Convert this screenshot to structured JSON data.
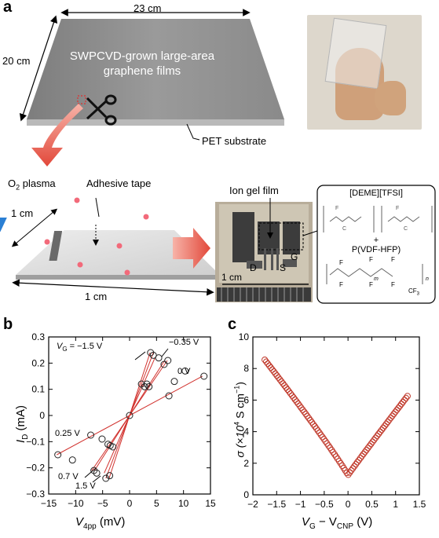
{
  "panel_a": {
    "label": "a",
    "film": {
      "width_label": "23 cm",
      "height_label": "20 cm",
      "title_line1": "SWPCVD-grown large-area",
      "title_line2": "graphene films",
      "substrate_label": "PET substrate"
    },
    "device": {
      "plasma_label": "O",
      "plasma_sub": "2",
      "plasma_suffix": " plasma",
      "tape_label": "Adhesive tape",
      "side1_label": "1 cm",
      "side2_label": "1 cm"
    },
    "photo": {
      "gel_label": "Ion gel film",
      "scale_label": "1 cm",
      "d_label": "D",
      "s_label": "S",
      "g_label": "G"
    },
    "chem": {
      "title": "[DEME][TFSI]",
      "plus": "+",
      "polymer": "P(VDF-HFP)",
      "f": "F",
      "cf3": "CF",
      "cf3_sub": "3",
      "m": "m",
      "n": "n",
      "ion_left1": "F",
      "ion_left2": "C",
      "ion_right1": "F",
      "ion_right2": "C"
    },
    "colors": {
      "film": "#8c8c8c",
      "arrow": "#e8584a",
      "tape": "#2a7fd4",
      "dot": "#f26a7a"
    }
  },
  "panel_b": {
    "label": "b",
    "chart_data": {
      "type": "scatter",
      "xlabel_main": "V",
      "xlabel_sub": "4pp",
      "xlabel_unit": " (mV)",
      "ylabel_main": "I",
      "ylabel_sub": "D",
      "ylabel_unit": " (mA)",
      "xlim": [
        -15,
        15
      ],
      "ylim": [
        -0.3,
        0.3
      ],
      "xticks": [
        -15,
        -10,
        -5,
        0,
        5,
        10,
        15
      ],
      "yticks": [
        -0.3,
        -0.2,
        -0.1,
        0,
        0.1,
        0.2,
        0.3
      ],
      "series": [
        {
          "name": "−1.5 V",
          "x": [
            -3.8,
            0,
            3.8
          ],
          "y": [
            -0.24,
            0,
            0.24
          ]
        },
        {
          "name": "−0.35 V",
          "x": [
            -4.7,
            0,
            4.7
          ],
          "y": [
            -0.22,
            0,
            0.22
          ]
        },
        {
          "name": "0 V",
          "x": [
            -7,
            0,
            7
          ],
          "y": [
            -0.21,
            0,
            0.21
          ]
        },
        {
          "name": "0.25 V",
          "x": [
            -13.5,
            0,
            13.5
          ],
          "y": [
            -0.15,
            0,
            0.15
          ]
        },
        {
          "name": "0.7 V",
          "x": [
            -6.5,
            0,
            6.5
          ],
          "y": [
            -0.21,
            0,
            0.21
          ]
        },
        {
          "name": "1.5 V",
          "x": [
            -4.4,
            0,
            4.4
          ],
          "y": [
            -0.24,
            0,
            0.24
          ]
        }
      ],
      "markers": [
        [
          -13.3,
          -0.15
        ],
        [
          -10.6,
          -0.17
        ],
        [
          -7.2,
          -0.075
        ],
        [
          -5.1,
          -0.09
        ],
        [
          -4,
          -0.11
        ],
        [
          -3.6,
          -0.115
        ],
        [
          -3.1,
          -0.12
        ],
        [
          -4.4,
          -0.24
        ],
        [
          -3.7,
          -0.23
        ],
        [
          -6.6,
          -0.21
        ],
        [
          -6.1,
          -0.22
        ],
        [
          0,
          0
        ],
        [
          2.2,
          0.12
        ],
        [
          2.8,
          0.11
        ],
        [
          3.2,
          0.12
        ],
        [
          3.6,
          0.11
        ],
        [
          7.3,
          0.075
        ],
        [
          8.3,
          0.13
        ],
        [
          10.3,
          0.17
        ],
        [
          13.8,
          0.15
        ],
        [
          3.9,
          0.24
        ],
        [
          4.4,
          0.23
        ],
        [
          5.4,
          0.22
        ],
        [
          7.1,
          0.21
        ],
        [
          6.4,
          0.195
        ]
      ],
      "annotations": {
        "vg_main": "V",
        "vg_sub": "G",
        "vg_value": " = −1.5 V",
        "a035": "−0.35 V",
        "a0": "0 V",
        "a025": "0.25 V",
        "a07": "0.7 V",
        "a15": "1.5 V"
      }
    }
  },
  "panel_c": {
    "label": "c",
    "chart_data": {
      "type": "scatter",
      "xlabel_main": "V",
      "xlabel_sub1": "G",
      "xlabel_mid": " − V",
      "xlabel_sub2": "CNP",
      "xlabel_unit": " (V)",
      "ylabel_prefix": "σ (×10",
      "ylabel_exp": "4",
      "ylabel_mid": " S cm",
      "ylabel_exp2": "−1",
      "ylabel_suffix": ")",
      "xlim": [
        -2,
        1.5
      ],
      "ylim": [
        0,
        10
      ],
      "xticks": [
        -2,
        -1.5,
        -1,
        -0.5,
        0,
        0.5,
        1,
        1.5
      ],
      "yticks": [
        0,
        2,
        4,
        6,
        8,
        10
      ],
      "color": "#c0392b",
      "curve": {
        "x_min": -1.75,
        "x_max": 1.25,
        "y_at_left": 8.55,
        "y_min": 1.25,
        "y_at_right": 6.25
      }
    }
  }
}
